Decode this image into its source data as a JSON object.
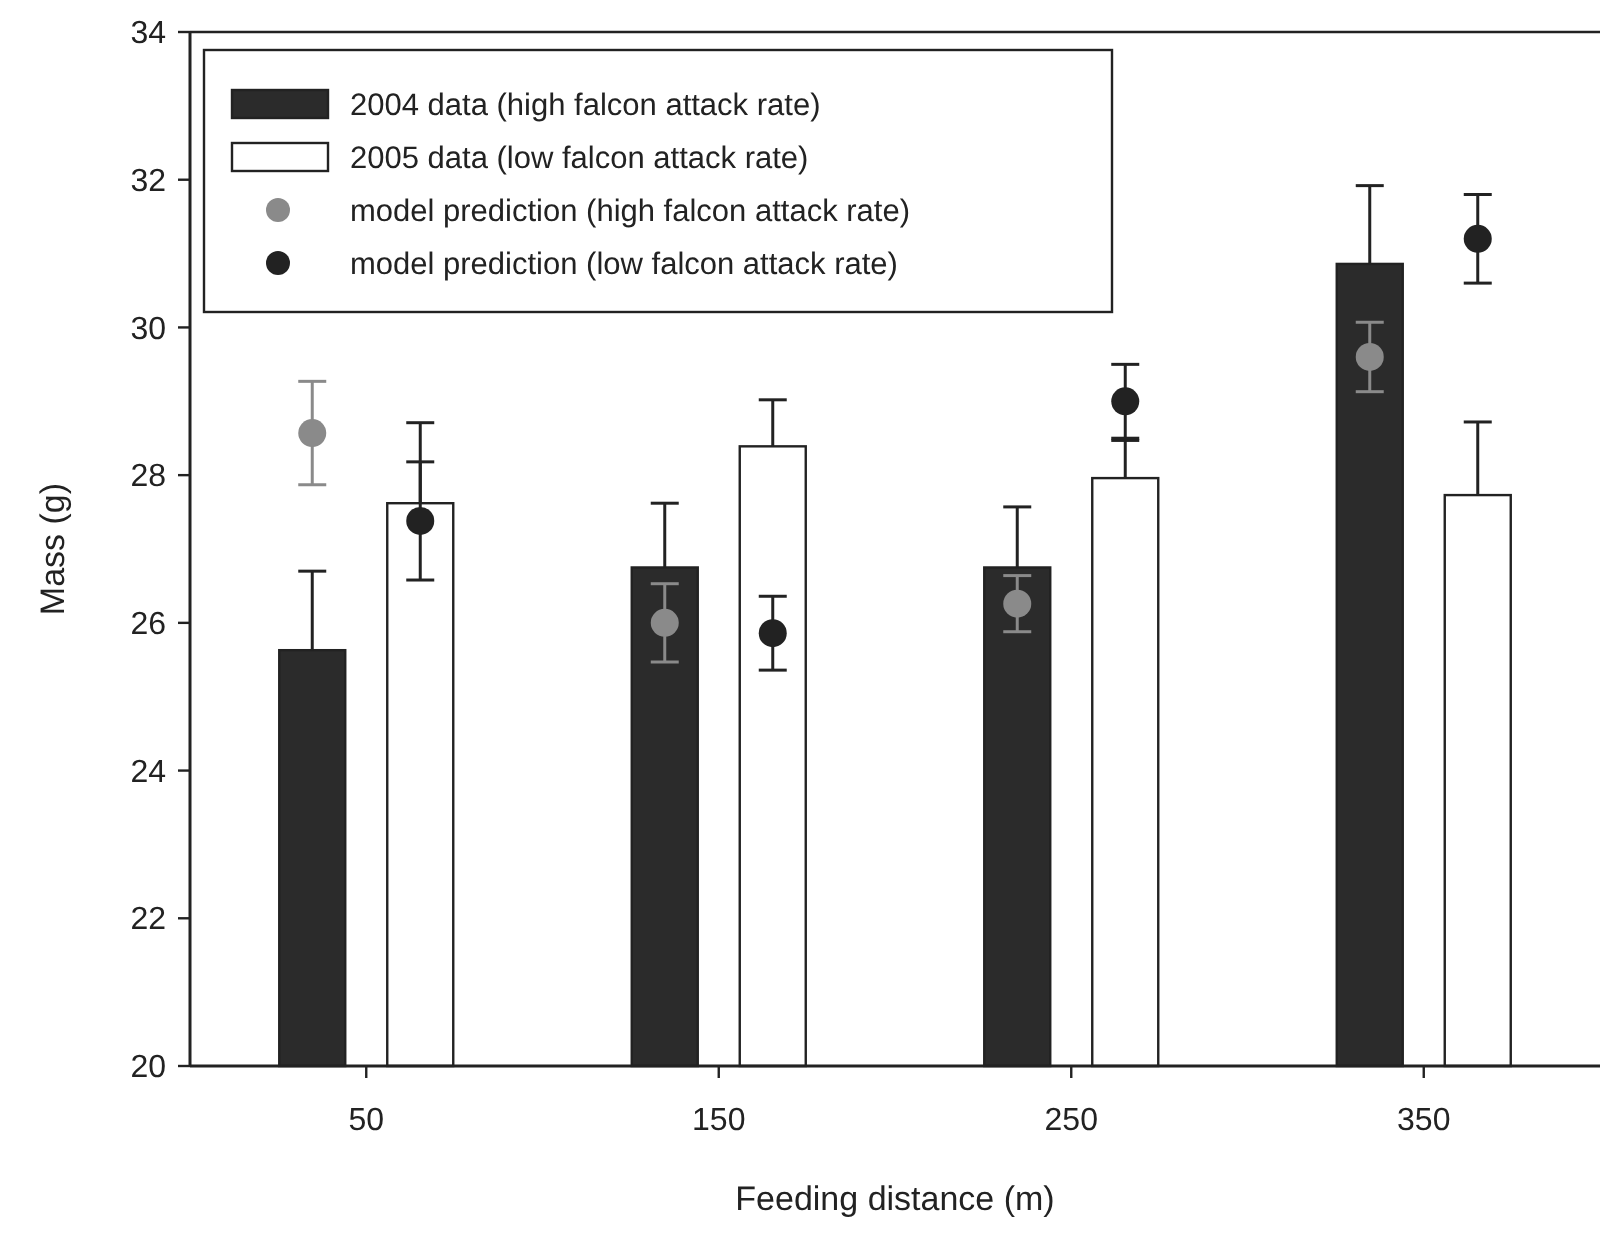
{
  "chart_data": {
    "type": "bar",
    "xlabel": "Feeding distance (m)",
    "ylabel": "Mass (g)",
    "categories": [
      "50",
      "150",
      "250",
      "350"
    ],
    "ylim": [
      20,
      34
    ],
    "yticks": [
      20,
      22,
      24,
      26,
      28,
      30,
      32,
      34
    ],
    "legend": "top left",
    "series": [
      {
        "name": "2004 data (high falcon attack rate)",
        "color": "#2b2b2b",
        "values": [
          25.63,
          26.75,
          26.75,
          30.86
        ],
        "errors": [
          [
            25.63,
            26.7
          ],
          [
            26.75,
            27.62
          ],
          [
            26.75,
            27.57
          ],
          [
            30.86,
            31.92
          ]
        ]
      },
      {
        "name": "2005 data (low falcon attack rate)",
        "color": "#ffffff",
        "values": [
          27.62,
          28.39,
          27.96,
          27.73
        ],
        "errors": [
          [
            27.62,
            28.71
          ],
          [
            28.39,
            29.02
          ],
          [
            27.96,
            28.47
          ],
          [
            27.73,
            28.72
          ]
        ]
      },
      {
        "name": "model prediction (high falcon attack rate)",
        "type": "scatter",
        "marker": "circle",
        "color": "#8a8a8a",
        "x": [
          "50",
          "150",
          "250",
          "350"
        ],
        "values": [
          28.57,
          26.0,
          26.26,
          29.6
        ],
        "errors": [
          0.7,
          0.53,
          0.38,
          0.47
        ]
      },
      {
        "name": "model prediction (low falcon attack rate)",
        "type": "scatter",
        "marker": "circle",
        "color": "#222222",
        "x": [
          "50",
          "150",
          "250",
          "350"
        ],
        "values": [
          27.38,
          25.86,
          29.0,
          31.2
        ],
        "errors": [
          0.8,
          0.5,
          0.5,
          0.6
        ]
      }
    ]
  }
}
